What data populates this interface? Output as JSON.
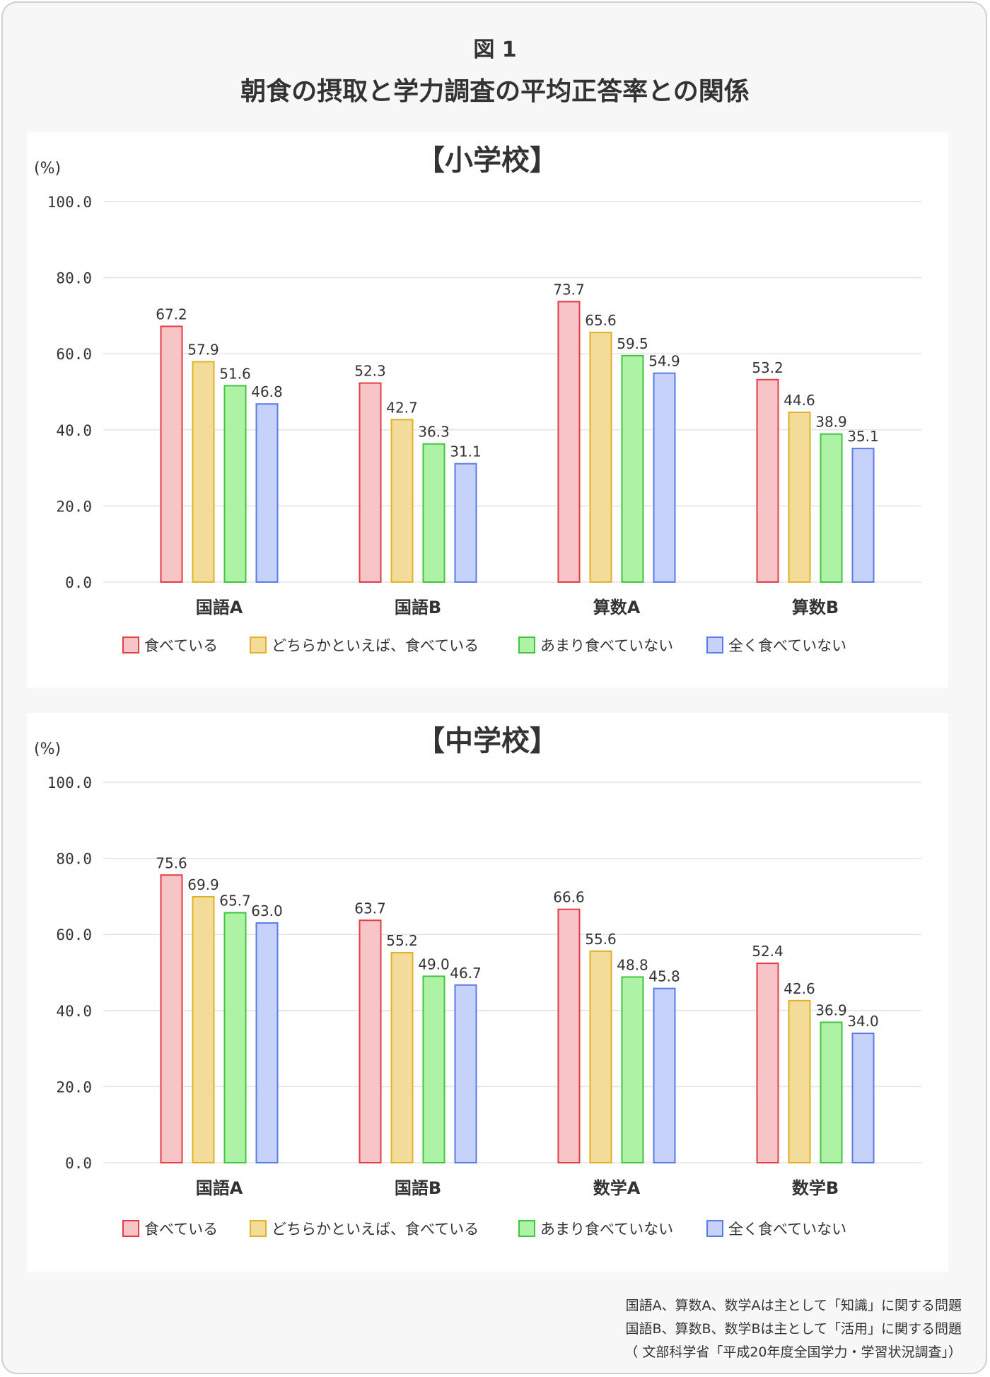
{
  "figure_label": "図 1",
  "figure_title": "朝食の摂取と学力調査の平均正答率との関係",
  "chart_data": [
    {
      "type": "bar",
      "title": "【小学校】",
      "ylabel": "(%)",
      "ylim": [
        0,
        100
      ],
      "yticks": [
        "0.0",
        "20.0",
        "40.0",
        "60.0",
        "80.0",
        "100.0"
      ],
      "grid": true,
      "legend_position": "bottom",
      "categories": [
        "国語A",
        "国語B",
        "算数A",
        "算数B"
      ],
      "series": [
        {
          "name": "食べている",
          "values": [
            67.2,
            52.3,
            73.7,
            53.2
          ]
        },
        {
          "name": "どちらかといえば、食べている",
          "values": [
            57.9,
            42.7,
            65.6,
            44.6
          ]
        },
        {
          "name": "あまり食べていない",
          "values": [
            51.6,
            36.3,
            59.5,
            38.9
          ]
        },
        {
          "name": "全く食べていない",
          "values": [
            46.8,
            31.1,
            54.9,
            35.1
          ]
        }
      ]
    },
    {
      "type": "bar",
      "title": "【中学校】",
      "ylabel": "(%)",
      "ylim": [
        0,
        100
      ],
      "yticks": [
        "0.0",
        "20.0",
        "40.0",
        "60.0",
        "80.0",
        "100.0"
      ],
      "grid": true,
      "legend_position": "bottom",
      "categories": [
        "国語A",
        "国語B",
        "数学A",
        "数学B"
      ],
      "series": [
        {
          "name": "食べている",
          "values": [
            75.6,
            63.7,
            66.6,
            52.4
          ]
        },
        {
          "name": "どちらかといえば、食べている",
          "values": [
            69.9,
            55.2,
            55.6,
            42.6
          ]
        },
        {
          "name": "あまり食べていない",
          "values": [
            65.7,
            49.0,
            48.8,
            36.9
          ]
        },
        {
          "name": "全く食べていない",
          "values": [
            63.0,
            46.7,
            45.8,
            34.0
          ]
        }
      ]
    }
  ],
  "colors": {
    "fills": [
      "#f7c5c8",
      "#f3dc9a",
      "#aef2a6",
      "#c6d2fa"
    ],
    "strokes": [
      "#e23d45",
      "#e2b126",
      "#3fc53f",
      "#5a7ce6"
    ]
  },
  "notes": [
    "国語A、算数A、数学Aは主として「知識」に関する問題",
    "国語B、算数B、数学Bは主として「活用」に関する問題",
    "（ 文部科学省「平成20年度全国学力・学習状況調査」）"
  ]
}
